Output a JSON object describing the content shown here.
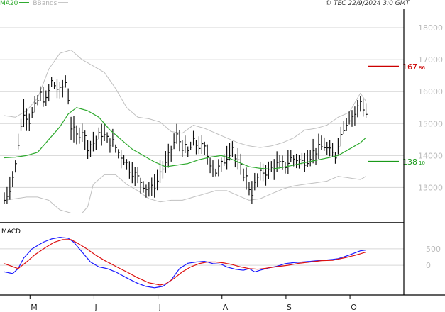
{
  "header": {
    "legend_ma": "MA20",
    "legend_bb": "BBands",
    "copyright": "© TEC 22/9/2024 3:0 GMT"
  },
  "macd_panel": {
    "label": "MACD"
  },
  "colors": {
    "price": "#111111",
    "ma20": "#2faa2f",
    "bbands": "#c0c0c0",
    "resistance": "#cc0000",
    "support": "#1a9a1a",
    "macd": "#1a1aff",
    "signal": "#dd1111",
    "grid": "#d6d6d6"
  },
  "chart_data": [
    {
      "type": "line",
      "title": "",
      "price_axis": {
        "ylim": [
          11900,
          18600
        ],
        "ticks": [
          13000,
          14000,
          15000,
          16000,
          17000,
          18000
        ],
        "tick_labels": [
          "13000",
          "14000",
          "15000",
          "16000",
          "17000",
          "18000"
        ]
      },
      "x_axis": {
        "tick_labels": [
          "M",
          "J",
          "J",
          "A",
          "S",
          "O"
        ],
        "tick_index": [
          9,
          32,
          55,
          78,
          101,
          124
        ],
        "num_periods": 125
      },
      "grid": true,
      "levels": [
        {
          "name": "resistance",
          "value": 16786,
          "label_main": "167",
          "label_sub": "86"
        },
        {
          "name": "support",
          "value": 13810,
          "label_main": "138",
          "label_sub": "10"
        }
      ],
      "anchors": {
        "close": [
          [
            0,
            12600
          ],
          [
            2,
            13000
          ],
          [
            4,
            13700
          ],
          [
            5,
            14400
          ],
          [
            7,
            15400
          ],
          [
            9,
            15100
          ],
          [
            11,
            15500
          ],
          [
            13,
            15900
          ],
          [
            15,
            15700
          ],
          [
            17,
            16300
          ],
          [
            18,
            16200
          ],
          [
            20,
            16000
          ],
          [
            22,
            16300
          ],
          [
            23,
            15800
          ],
          [
            24,
            14900
          ],
          [
            26,
            14600
          ],
          [
            28,
            14800
          ],
          [
            30,
            14300
          ],
          [
            32,
            14400
          ],
          [
            35,
            14700
          ],
          [
            37,
            14500
          ],
          [
            39,
            14400
          ],
          [
            41,
            14100
          ],
          [
            43,
            13900
          ],
          [
            45,
            13600
          ],
          [
            47,
            13400
          ],
          [
            49,
            13200
          ],
          [
            51,
            13000
          ],
          [
            53,
            12950
          ],
          [
            55,
            13200
          ],
          [
            56,
            13500
          ],
          [
            58,
            13700
          ],
          [
            60,
            14200
          ],
          [
            62,
            14600
          ],
          [
            64,
            14300
          ],
          [
            66,
            14100
          ],
          [
            68,
            14400
          ],
          [
            70,
            14300
          ],
          [
            72,
            14200
          ],
          [
            74,
            13800
          ],
          [
            76,
            13500
          ],
          [
            78,
            13700
          ],
          [
            80,
            14000
          ],
          [
            82,
            14300
          ],
          [
            83,
            13900
          ],
          [
            85,
            13600
          ],
          [
            87,
            13300
          ],
          [
            88,
            13000
          ],
          [
            89,
            12850
          ],
          [
            91,
            13300
          ],
          [
            93,
            13500
          ],
          [
            95,
            13500
          ],
          [
            97,
            13700
          ],
          [
            99,
            13700
          ],
          [
            101,
            13700
          ],
          [
            103,
            13900
          ],
          [
            105,
            13900
          ],
          [
            107,
            13800
          ],
          [
            109,
            13900
          ],
          [
            111,
            14100
          ],
          [
            113,
            14200
          ],
          [
            115,
            14300
          ],
          [
            117,
            14100
          ],
          [
            119,
            14000
          ],
          [
            120,
            14400
          ],
          [
            122,
            14900
          ],
          [
            124,
            15200
          ],
          [
            126,
            15300
          ],
          [
            128,
            15700
          ],
          [
            130,
            15300
          ]
        ],
        "ma20": [
          [
            0,
            13930
          ],
          [
            4,
            13950
          ],
          [
            8,
            14000
          ],
          [
            12,
            14100
          ],
          [
            16,
            14500
          ],
          [
            20,
            14900
          ],
          [
            23,
            15300
          ],
          [
            26,
            15500
          ],
          [
            30,
            15400
          ],
          [
            34,
            15200
          ],
          [
            38,
            14800
          ],
          [
            42,
            14500
          ],
          [
            46,
            14200
          ],
          [
            50,
            14000
          ],
          [
            54,
            13800
          ],
          [
            58,
            13650
          ],
          [
            62,
            13700
          ],
          [
            66,
            13750
          ],
          [
            70,
            13870
          ],
          [
            74,
            13950
          ],
          [
            78,
            14000
          ],
          [
            80,
            13950
          ],
          [
            84,
            13800
          ],
          [
            88,
            13650
          ],
          [
            92,
            13600
          ],
          [
            96,
            13570
          ],
          [
            100,
            13630
          ],
          [
            104,
            13700
          ],
          [
            108,
            13780
          ],
          [
            112,
            13850
          ],
          [
            116,
            13920
          ],
          [
            120,
            14000
          ],
          [
            124,
            14200
          ],
          [
            128,
            14400
          ],
          [
            130,
            14560
          ]
        ],
        "bb_upper": [
          [
            0,
            15250
          ],
          [
            4,
            15200
          ],
          [
            8,
            15400
          ],
          [
            12,
            15800
          ],
          [
            16,
            16700
          ],
          [
            20,
            17200
          ],
          [
            24,
            17300
          ],
          [
            28,
            17000
          ],
          [
            32,
            16800
          ],
          [
            36,
            16600
          ],
          [
            40,
            16100
          ],
          [
            44,
            15500
          ],
          [
            48,
            15200
          ],
          [
            52,
            15150
          ],
          [
            56,
            15050
          ],
          [
            60,
            14750
          ],
          [
            64,
            14700
          ],
          [
            68,
            14950
          ],
          [
            72,
            14850
          ],
          [
            76,
            14700
          ],
          [
            80,
            14550
          ],
          [
            84,
            14400
          ],
          [
            88,
            14300
          ],
          [
            92,
            14250
          ],
          [
            96,
            14300
          ],
          [
            100,
            14400
          ],
          [
            104,
            14550
          ],
          [
            108,
            14800
          ],
          [
            112,
            14850
          ],
          [
            116,
            14950
          ],
          [
            120,
            15200
          ],
          [
            124,
            15350
          ],
          [
            128,
            15950
          ],
          [
            130,
            15700
          ]
        ],
        "bb_lower": [
          [
            0,
            12600
          ],
          [
            4,
            12650
          ],
          [
            8,
            12700
          ],
          [
            12,
            12700
          ],
          [
            16,
            12600
          ],
          [
            20,
            12300
          ],
          [
            24,
            12200
          ],
          [
            28,
            12200
          ],
          [
            30,
            12400
          ],
          [
            32,
            13100
          ],
          [
            36,
            13400
          ],
          [
            40,
            13400
          ],
          [
            44,
            13100
          ],
          [
            48,
            12900
          ],
          [
            52,
            12650
          ],
          [
            56,
            12550
          ],
          [
            60,
            12600
          ],
          [
            64,
            12600
          ],
          [
            68,
            12700
          ],
          [
            72,
            12800
          ],
          [
            76,
            12900
          ],
          [
            80,
            12900
          ],
          [
            84,
            12750
          ],
          [
            88,
            12600
          ],
          [
            92,
            12650
          ],
          [
            96,
            12800
          ],
          [
            100,
            12950
          ],
          [
            104,
            13050
          ],
          [
            108,
            13100
          ],
          [
            112,
            13150
          ],
          [
            116,
            13200
          ],
          [
            120,
            13350
          ],
          [
            124,
            13300
          ],
          [
            128,
            13250
          ],
          [
            130,
            13350
          ]
        ]
      }
    },
    {
      "type": "line",
      "title": "",
      "ylabel": "MACD",
      "ylim": [
        -900,
        1250
      ],
      "ticks": [
        0,
        500
      ],
      "tick_labels": [
        "0",
        "500"
      ],
      "series": [
        {
          "name": "MACD",
          "anchors": [
            [
              0,
              -200
            ],
            [
              3,
              -250
            ],
            [
              5,
              -100
            ],
            [
              7,
              220
            ],
            [
              10,
              500
            ],
            [
              14,
              700
            ],
            [
              17,
              800
            ],
            [
              20,
              850
            ],
            [
              23,
              820
            ],
            [
              25,
              700
            ],
            [
              28,
              400
            ],
            [
              31,
              100
            ],
            [
              34,
              -50
            ],
            [
              37,
              -100
            ],
            [
              40,
              -200
            ],
            [
              44,
              -380
            ],
            [
              48,
              -550
            ],
            [
              51,
              -640
            ],
            [
              54,
              -680
            ],
            [
              57,
              -640
            ],
            [
              60,
              -450
            ],
            [
              63,
              -100
            ],
            [
              66,
              60
            ],
            [
              69,
              100
            ],
            [
              72,
              120
            ],
            [
              75,
              50
            ],
            [
              78,
              30
            ],
            [
              80,
              -50
            ],
            [
              83,
              -120
            ],
            [
              86,
              -150
            ],
            [
              88,
              -100
            ],
            [
              90,
              -200
            ],
            [
              92,
              -150
            ],
            [
              95,
              -80
            ],
            [
              98,
              -30
            ],
            [
              101,
              50
            ],
            [
              104,
              80
            ],
            [
              107,
              100
            ],
            [
              110,
              120
            ],
            [
              113,
              140
            ],
            [
              117,
              170
            ],
            [
              120,
              200
            ],
            [
              124,
              310
            ],
            [
              128,
              440
            ],
            [
              130,
              460
            ]
          ]
        },
        {
          "name": "Signal",
          "anchors": [
            [
              0,
              50
            ],
            [
              5,
              -100
            ],
            [
              8,
              100
            ],
            [
              11,
              320
            ],
            [
              15,
              550
            ],
            [
              18,
              700
            ],
            [
              21,
              780
            ],
            [
              24,
              780
            ],
            [
              27,
              640
            ],
            [
              30,
              480
            ],
            [
              33,
              300
            ],
            [
              36,
              150
            ],
            [
              40,
              -30
            ],
            [
              44,
              -200
            ],
            [
              48,
              -380
            ],
            [
              52,
              -530
            ],
            [
              56,
              -600
            ],
            [
              58,
              -560
            ],
            [
              61,
              -400
            ],
            [
              64,
              -200
            ],
            [
              67,
              -50
            ],
            [
              70,
              50
            ],
            [
              73,
              100
            ],
            [
              76,
              100
            ],
            [
              79,
              70
            ],
            [
              82,
              20
            ],
            [
              85,
              -50
            ],
            [
              88,
              -100
            ],
            [
              91,
              -120
            ],
            [
              94,
              -90
            ],
            [
              98,
              -40
            ],
            [
              102,
              0
            ],
            [
              106,
              60
            ],
            [
              110,
              100
            ],
            [
              114,
              140
            ],
            [
              118,
              150
            ],
            [
              122,
              220
            ],
            [
              126,
              300
            ],
            [
              130,
              400
            ]
          ]
        }
      ]
    }
  ]
}
